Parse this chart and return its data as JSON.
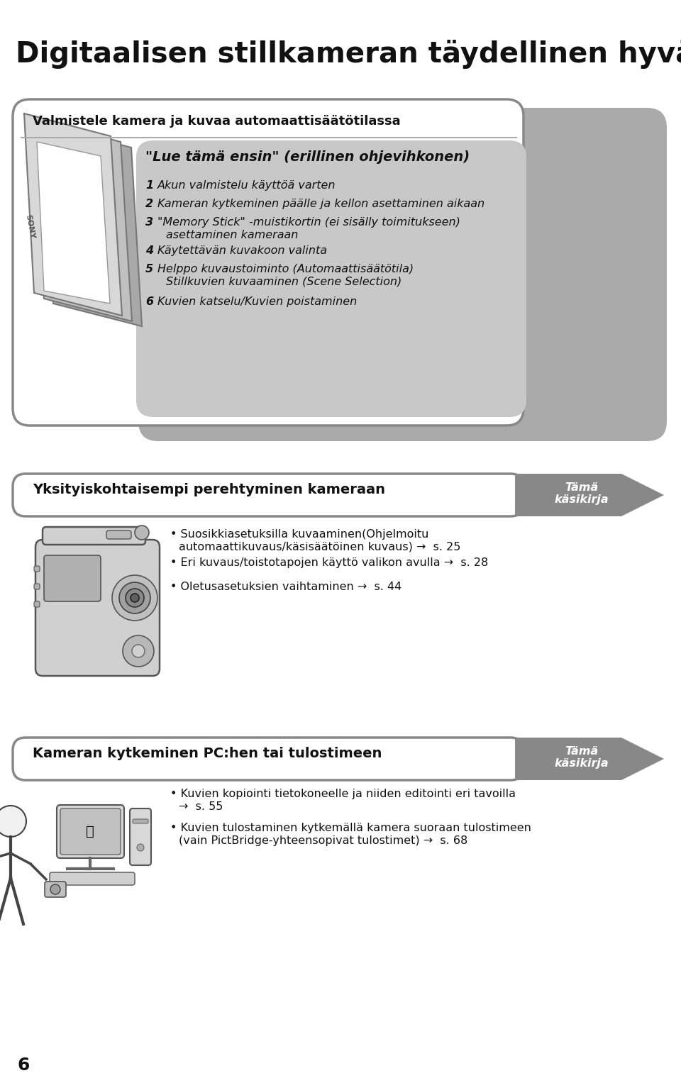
{
  "title": "Digitaalisen stillkameran täydellinen hyväksikäyttö",
  "bg_color": "#ffffff",
  "section1_header": "Valmistele kamera ja kuvaa automaattisäätötilassa",
  "guide_title": "\"Lue tämä ensin\" (erillinen ohjevihkonen)",
  "guide_items": [
    [
      "1",
      "Akun valmistelu käyttöä varten",
      null
    ],
    [
      "2",
      "Kameran kytkeminen päälle ja kellon asettaminen aikaan",
      null
    ],
    [
      "3",
      "\"Memory Stick\" -muistikortin (ei sisälly toimitukseen)",
      "asettaminen kameraan"
    ],
    [
      "4",
      "Käytettävän kuvakoon valinta",
      null
    ],
    [
      "5",
      "Helppo kuvaustoiminto (Automaattisäätötila)",
      "Stillkuvien kuvaaminen (Scene Selection)"
    ],
    [
      "6",
      "Kuvien katselu/Kuvien poistaminen",
      null
    ]
  ],
  "section2_header": "Yksityiskohtaisempi perehtyminen kameraan",
  "section2_badge_line1": "Tämä",
  "section2_badge_line2": "käsikirja",
  "section2_bullets": [
    [
      "Suosikkiasetuksilla kuvaaminen(Ohjelmoitu",
      "automaattikuvaus/käsisäätöinen kuvaus) →  s. 25"
    ],
    [
      "Eri kuvaus/toistotapojen käyttö valikon avulla →  s. 28",
      null
    ],
    [
      "Oletusasetuksien vaihtaminen →  s. 44",
      null
    ]
  ],
  "section3_header": "Kameran kytkeminen PC:hen tai tulostimeen",
  "section3_badge_line1": "Tämä",
  "section3_badge_line2": "käsikirja",
  "section3_bullets": [
    [
      "Kuvien kopiointi tietokoneelle ja niiden editointi eri tavoilla",
      "→  s. 55"
    ],
    [
      "Kuvien tulostaminen kytkemällä kamera suoraan tulostimeen",
      "(vain PictBridge-yhteensopivat tulostimet) →  s. 68"
    ]
  ],
  "page_number": "6",
  "gray_shadow": "#aaaaaa",
  "gray_inner": "#c8c8c8",
  "gray_arrow": "#888888",
  "white": "#ffffff",
  "text_color": "#111111"
}
